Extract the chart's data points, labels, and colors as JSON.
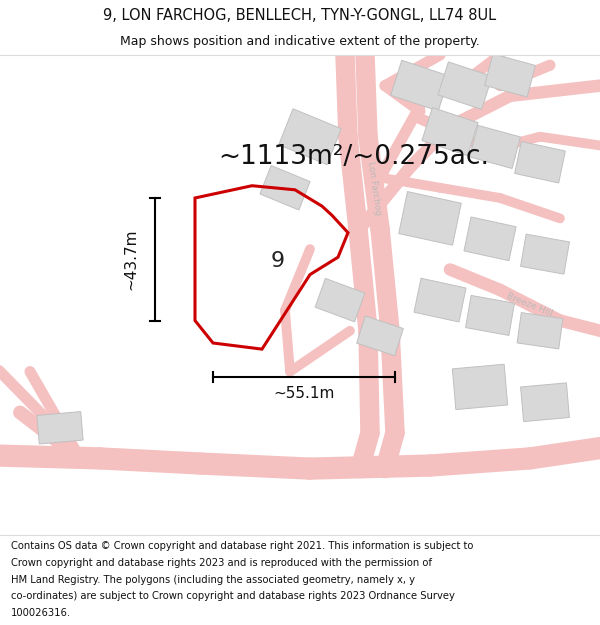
{
  "title_line1": "9, LON FARCHOG, BENLLECH, TYN-Y-GONGL, LL74 8UL",
  "title_line2": "Map shows position and indicative extent of the property.",
  "footer_text": "Contains OS data © Crown copyright and database right 2021. This information is subject to Crown copyright and database rights 2023 and is reproduced with the permission of HM Land Registry. The polygons (including the associated geometry, namely x, y co-ordinates) are subject to Crown copyright and database rights 2023 Ordnance Survey 100026316.",
  "area_text": "~1113m²/~0.275ac.",
  "width_label": "~55.1m",
  "height_label": "~43.7m",
  "plot_number": "9",
  "road_color": "#f5c0c0",
  "road_edge_color": "#e89090",
  "building_color": "#d8d8d8",
  "building_edge_color": "#c0c0c0",
  "plot_edge_color": "#cc0000",
  "street_label_color": "#bbbbbb",
  "title_fontsize": 10.5,
  "subtitle_fontsize": 9,
  "footer_fontsize": 7.2,
  "area_fontsize": 19,
  "label_fontsize": 11,
  "plot_num_fontsize": 16
}
